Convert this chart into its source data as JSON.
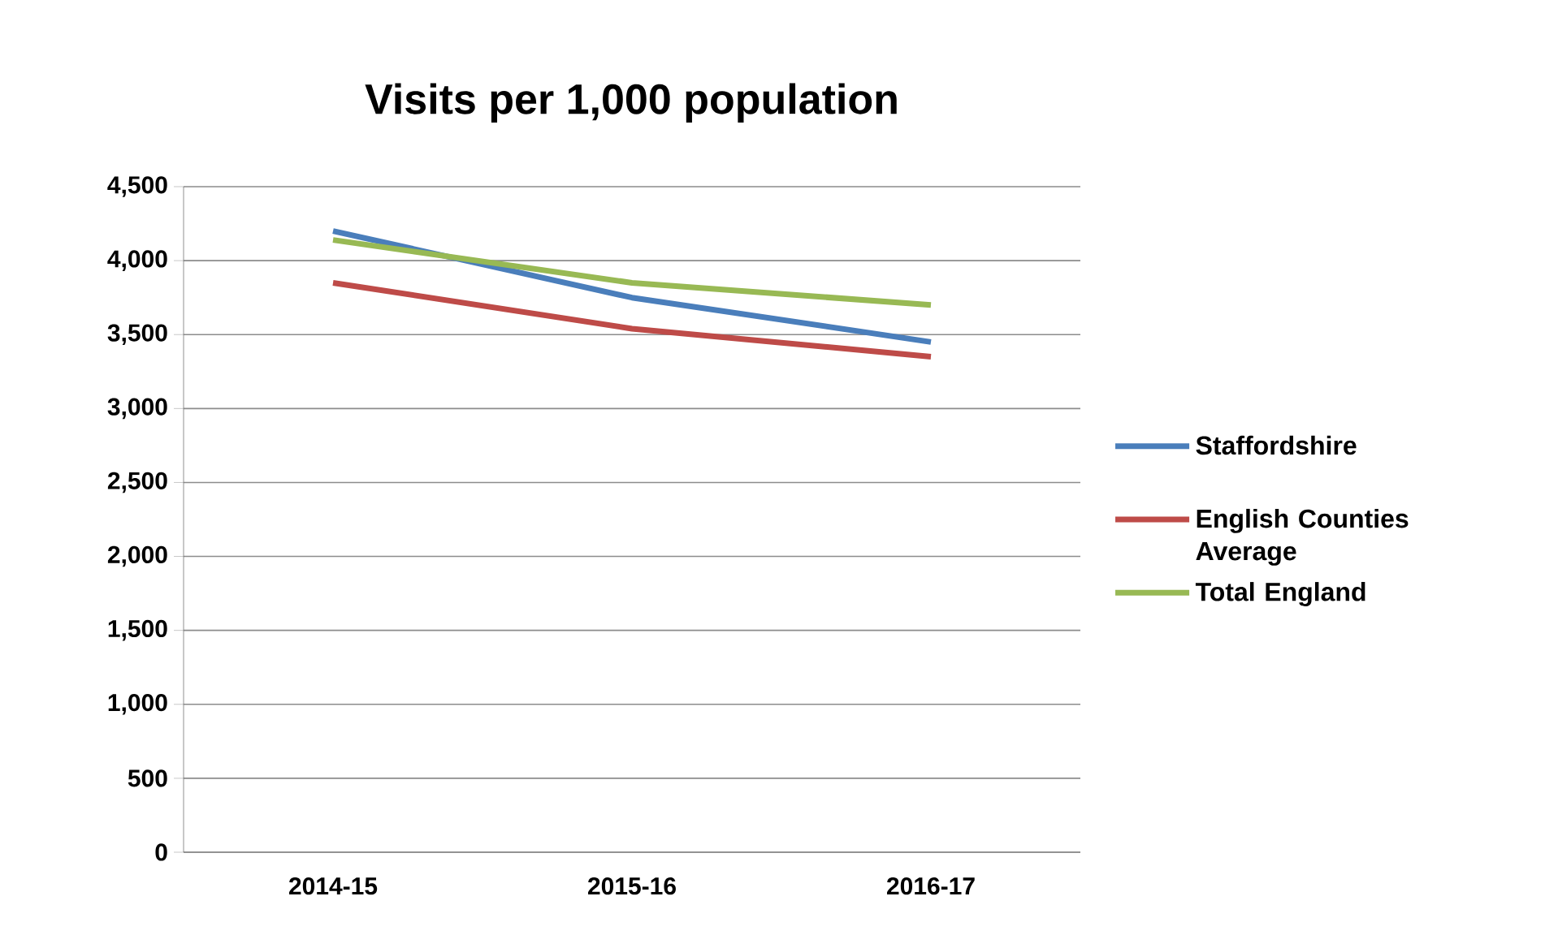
{
  "chart_data": {
    "type": "line",
    "title": "Visits per 1,000 population",
    "categories": [
      "2014-15",
      "2015-16",
      "2016-17"
    ],
    "series": [
      {
        "name": "Staffordshire",
        "color": "#4a7ebb",
        "values": [
          4200,
          3750,
          3450
        ]
      },
      {
        "name": "English Counties Average",
        "color": "#be4b48",
        "values": [
          3850,
          3540,
          3350
        ]
      },
      {
        "name": "Total England",
        "color": "#98b954",
        "values": [
          4140,
          3850,
          3700
        ]
      }
    ],
    "ylim": [
      0,
      4500
    ],
    "yticks": [
      0,
      500,
      {
        "value": 1000,
        "label": "1,000"
      },
      {
        "value": 1500,
        "label": "1,500"
      },
      {
        "value": 2000,
        "label": "2,000"
      },
      {
        "value": 2500,
        "label": "2,500"
      },
      {
        "value": 3000,
        "label": "3,000"
      },
      {
        "value": 3500,
        "label": "3,500"
      },
      {
        "value": 4000,
        "label": "4,000"
      },
      {
        "value": 4500,
        "label": "4,500"
      }
    ],
    "grid": "y",
    "legend": "right"
  }
}
